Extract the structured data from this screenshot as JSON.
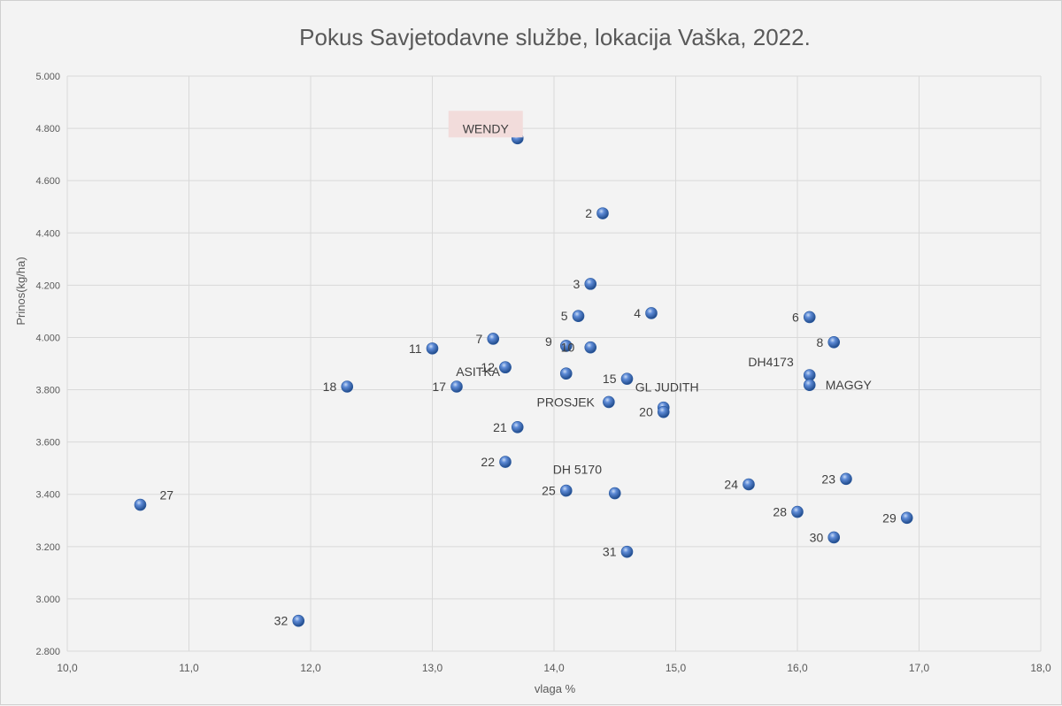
{
  "chart_data": {
    "type": "scatter",
    "title": "Pokus Savjetodavne službe, lokacija Vaška, 2022.",
    "xlabel": "vlaga %",
    "ylabel": "Prinos(kg/ha)",
    "xlim": [
      10.0,
      18.0
    ],
    "ylim": [
      2800,
      5000
    ],
    "x_ticks": [
      10.0,
      11.0,
      12.0,
      13.0,
      14.0,
      15.0,
      16.0,
      17.0,
      18.0
    ],
    "x_tick_labels": [
      "10,0",
      "11,0",
      "12,0",
      "13,0",
      "14,0",
      "15,0",
      "16,0",
      "17,0",
      "18,0"
    ],
    "y_ticks": [
      2800,
      3000,
      3200,
      3400,
      3600,
      3800,
      4000,
      4200,
      4400,
      4600,
      4800,
      5000
    ],
    "y_tick_labels": [
      "2.800",
      "3.000",
      "3.200",
      "3.400",
      "3.600",
      "3.800",
      "4.000",
      "4.200",
      "4.400",
      "4.600",
      "4.800",
      "5.000"
    ],
    "grid": true,
    "highlight_label_color": "#f2dcdb",
    "marker_color": "#4472c4",
    "points": [
      {
        "label": "WENDY",
        "x": 13.7,
        "y": 4762,
        "highlight": true
      },
      {
        "label": "2",
        "x": 14.4,
        "y": 4475
      },
      {
        "label": "3",
        "x": 14.3,
        "y": 4205
      },
      {
        "label": "5",
        "x": 14.2,
        "y": 4082
      },
      {
        "label": "4",
        "x": 14.8,
        "y": 4093
      },
      {
        "label": "6",
        "x": 16.1,
        "y": 4078
      },
      {
        "label": "7",
        "x": 13.5,
        "y": 3995
      },
      {
        "label": "9",
        "x": 14.1,
        "y": 3968
      },
      {
        "label": "10",
        "x": 14.3,
        "y": 3962
      },
      {
        "label": "11",
        "x": 13.0,
        "y": 3958
      },
      {
        "label": "8",
        "x": 16.3,
        "y": 3982
      },
      {
        "label": "ASITKA",
        "x": 13.6,
        "y": 3886
      },
      {
        "label": "12",
        "x": 13.6,
        "y": 3886
      },
      {
        "label": "",
        "x": 14.1,
        "y": 3862
      },
      {
        "label": "15",
        "x": 14.6,
        "y": 3842
      },
      {
        "label": "DH4173",
        "x": 16.1,
        "y": 3856
      },
      {
        "label": "MAGGY",
        "x": 16.1,
        "y": 3818
      },
      {
        "label": "18",
        "x": 12.3,
        "y": 3812
      },
      {
        "label": "17",
        "x": 13.2,
        "y": 3812
      },
      {
        "label": "PROSJEK",
        "x": 14.45,
        "y": 3753
      },
      {
        "label": "GL JUDITH",
        "x": 14.9,
        "y": 3732
      },
      {
        "label": "20",
        "x": 14.9,
        "y": 3715
      },
      {
        "label": "21",
        "x": 13.7,
        "y": 3657
      },
      {
        "label": "22",
        "x": 13.6,
        "y": 3524
      },
      {
        "label": "DH 5170",
        "x": 14.5,
        "y": 3404
      },
      {
        "label": "25",
        "x": 14.1,
        "y": 3414
      },
      {
        "label": "24",
        "x": 15.6,
        "y": 3438
      },
      {
        "label": "23",
        "x": 16.4,
        "y": 3459
      },
      {
        "label": "27",
        "x": 10.6,
        "y": 3360
      },
      {
        "label": "28",
        "x": 16.0,
        "y": 3333
      },
      {
        "label": "29",
        "x": 16.9,
        "y": 3310
      },
      {
        "label": "30",
        "x": 16.3,
        "y": 3235
      },
      {
        "label": "31",
        "x": 14.6,
        "y": 3180
      },
      {
        "label": "32",
        "x": 11.9,
        "y": 2916
      }
    ]
  }
}
